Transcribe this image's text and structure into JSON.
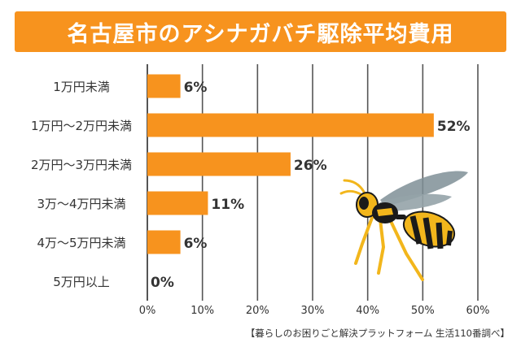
{
  "header": {
    "title": "名古屋市のアシナガバチ駆除平均費用"
  },
  "chart_data": {
    "type": "bar",
    "orientation": "horizontal",
    "categories": [
      "1万円未満",
      "1万円〜2万円未満",
      "2万円〜3万円未満",
      "3万〜4万円未満",
      "4万〜5万円未満",
      "5万円以上"
    ],
    "values": [
      6,
      52,
      26,
      11,
      6,
      0
    ],
    "data_labels": [
      "6%",
      "52%",
      "26%",
      "11%",
      "6%",
      "0%"
    ],
    "x_ticks": [
      "0%",
      "10%",
      "20%",
      "30%",
      "40%",
      "50%",
      "60%"
    ],
    "xlim": [
      0,
      60
    ],
    "grid": true,
    "bar_color": "#f7931e",
    "grid_color": "#555555"
  },
  "illustration": {
    "icon": "wasp-icon",
    "colors": {
      "body": "#f2b61c",
      "stripe": "#1a1a1a",
      "wing": "#7f8f96"
    }
  },
  "footer": {
    "source": "【暮らしのお困りごと解決プラットフォーム 生活110番調べ】"
  }
}
